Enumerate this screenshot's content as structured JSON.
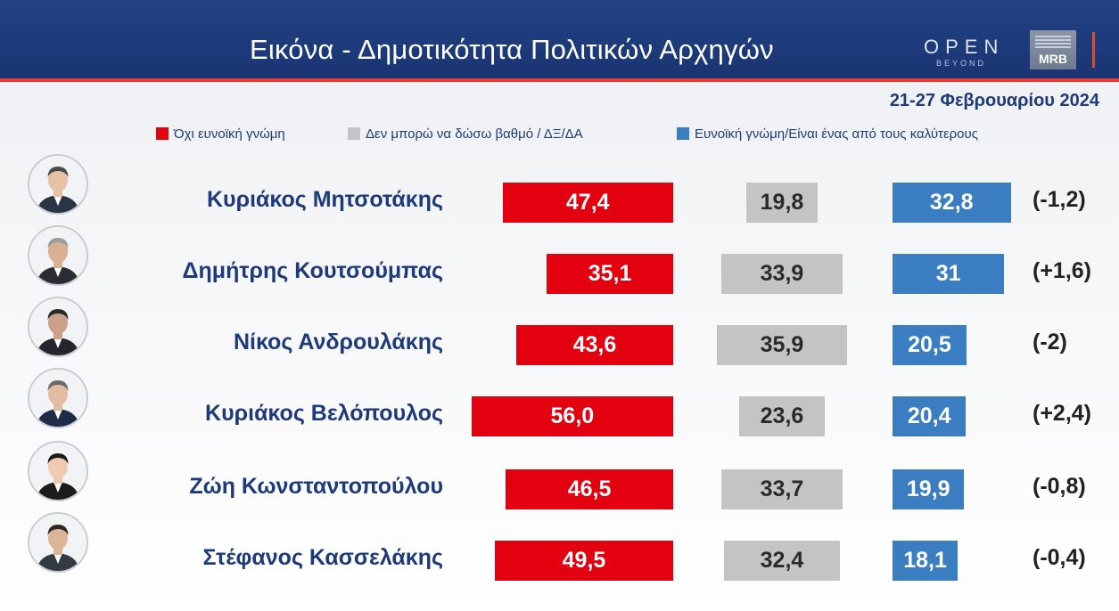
{
  "header": {
    "title": "Εικόνα - Δημοτικότητα Πολιτικών Αρχηγών",
    "logo_open": "OPEN",
    "logo_beyond": "BEYOND",
    "logo_mrb": "MRB"
  },
  "date": "21-27 Φεβρουαρίου 2024",
  "legend": [
    {
      "label": "Όχι ευνοϊκή γνώμη",
      "color": "#e3000f"
    },
    {
      "label": "Δεν μπορώ να δώσω βαθμό / ΔΞ/ΔΑ",
      "color": "#c4c4c6"
    },
    {
      "label": "Ευνοϊκή γνώμη/Είναι ένας από τους καλύτερους",
      "color": "#3b7dc1"
    }
  ],
  "colors": {
    "unfavorable": "#e3000f",
    "no_opinion": "#c4c4c6",
    "favorable": "#3b7dc1",
    "name_text": "#1d3a7a",
    "header_bg": "#1d3a7a"
  },
  "chart_data": {
    "type": "bar",
    "title": "Εικόνα - Δημοτικότητα Πολιτικών Αρχηγών",
    "subtitle": "21-27 Φεβρουαρίου 2024",
    "categories": [
      "Κυριάκος Μητσοτάκης",
      "Δημήτρης Κουτσούμπας",
      "Νίκος Ανδρουλάκης",
      "Κυριάκος Βελόπουλος",
      "Ζώη Κωνσταντοπούλου",
      "Στέφανος Κασσελάκης"
    ],
    "series": [
      {
        "name": "Όχι ευνοϊκή γνώμη",
        "values": [
          47.4,
          35.1,
          43.6,
          56.0,
          46.5,
          49.5
        ],
        "labels": [
          "47,4",
          "35,1",
          "43,6",
          "56,0",
          "46,5",
          "49,5"
        ]
      },
      {
        "name": "Δεν μπορώ να δώσω βαθμό / ΔΞ/ΔΑ",
        "values": [
          19.8,
          33.9,
          35.9,
          23.6,
          33.7,
          32.4
        ],
        "labels": [
          "19,8",
          "33,9",
          "35,9",
          "23,6",
          "33,7",
          "32,4"
        ]
      },
      {
        "name": "Ευνοϊκή γνώμη/Είναι ένας από τους καλύτερους",
        "values": [
          32.8,
          31,
          20.5,
          20.4,
          19.9,
          18.1
        ],
        "labels": [
          "32,8",
          "31",
          "20,5",
          "20,4",
          "19,9",
          "18,1"
        ]
      }
    ],
    "changes": [
      "(-1,2)",
      "(+1,6)",
      "(-2)",
      "(+2,4)",
      "(-0,8)",
      "(-0,4)"
    ],
    "legend_position": "top-right",
    "grid": false
  }
}
